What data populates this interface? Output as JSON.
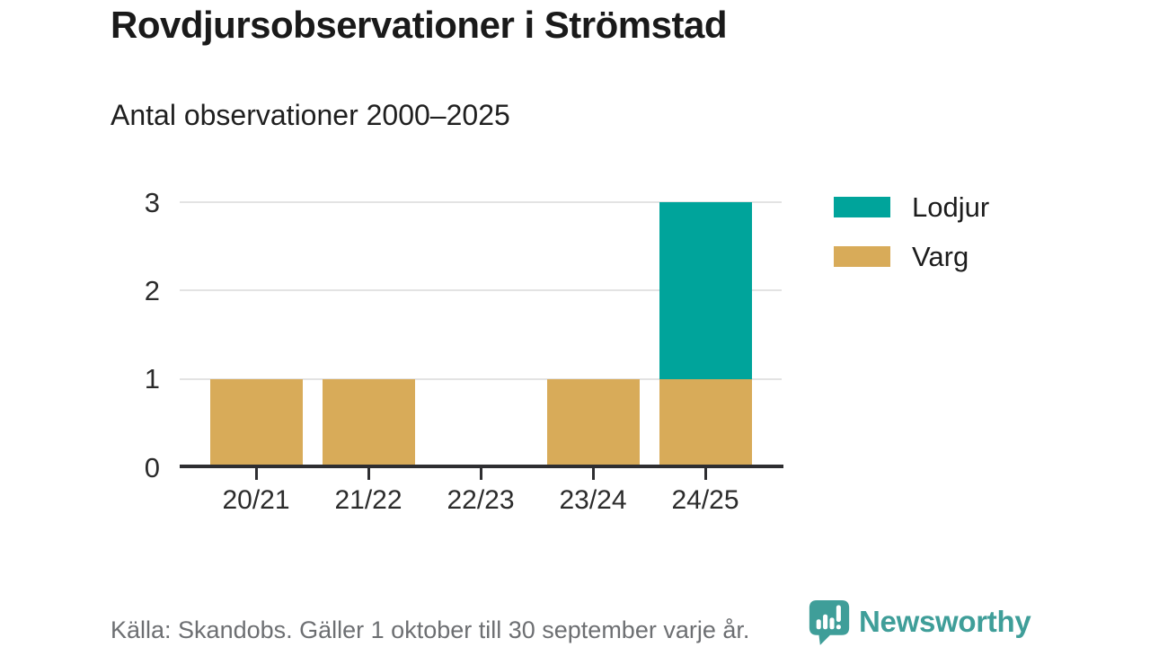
{
  "header": {
    "title": "Rovdjursobservationer i Strömstad",
    "subtitle": "Antal observationer 2000–2025"
  },
  "chart_data": {
    "type": "bar",
    "stacked": true,
    "title": "Rovdjursobservationer i Strömstad",
    "subtitle": "Antal observationer 2000–2025",
    "categories": [
      "20/21",
      "21/22",
      "22/23",
      "23/24",
      "24/25"
    ],
    "series": [
      {
        "name": "Lodjur",
        "color": "#00a49b",
        "values": [
          0,
          0,
          0,
          0,
          2
        ]
      },
      {
        "name": "Varg",
        "color": "#d8ab59",
        "values": [
          1,
          1,
          0,
          1,
          1
        ]
      }
    ],
    "totals": [
      1,
      1,
      0,
      1,
      3
    ],
    "xlabel": "",
    "ylabel": "",
    "ylim": [
      0,
      3
    ],
    "yticks": [
      0,
      1,
      2,
      3
    ],
    "grid": true,
    "legend_position": "right"
  },
  "footer": {
    "source": "Källa: Skandobs. Gäller 1 oktober till 30 september varje år.",
    "brand": "Newsworthy"
  },
  "colors": {
    "lodjur": "#00a49b",
    "varg": "#d8ab59",
    "logo_teal": "#3f9e99",
    "axis": "#2e2e31",
    "gridline": "#e3e3e3"
  }
}
